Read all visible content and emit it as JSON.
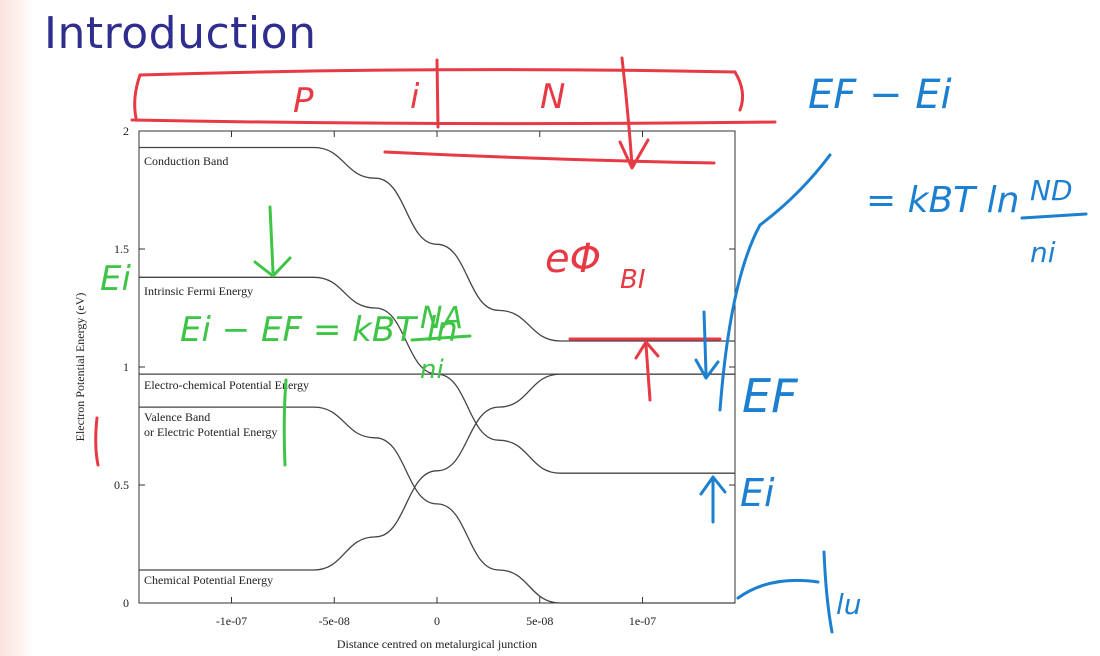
{
  "slide": {
    "title": "Introduction"
  },
  "chart_data": {
    "type": "line",
    "xlabel": "Distance centred on metalurgical junction",
    "ylabel": "Electron Potential Energy (eV)",
    "xlim": [
      -1.45e-07,
      1.45e-07
    ],
    "ylim": [
      0,
      2
    ],
    "x_ticks": [
      -1e-07,
      -5e-08,
      0,
      5e-08,
      1e-07
    ],
    "x_tick_labels": [
      "-1e-07",
      "-5e-08",
      "0",
      "5e-08",
      "1e-07"
    ],
    "y_ticks": [
      0,
      0.5,
      1,
      1.5,
      2
    ],
    "y_tick_labels": [
      "0",
      "0.5",
      "1",
      "1.5",
      "2"
    ],
    "grid": false,
    "legend": "none",
    "series": [
      {
        "name": "Conduction Band",
        "x": [
          -1.45e-07,
          -6e-08,
          -3e-08,
          0,
          3e-08,
          6e-08,
          1.45e-07
        ],
        "y": [
          1.93,
          1.93,
          1.8,
          1.52,
          1.24,
          1.11,
          1.11
        ]
      },
      {
        "name": "Intrinsic Fermi Energy",
        "x": [
          -1.45e-07,
          -6e-08,
          -3e-08,
          0,
          3e-08,
          6e-08,
          1.45e-07
        ],
        "y": [
          1.38,
          1.38,
          1.25,
          0.97,
          0.69,
          0.55,
          0.55
        ]
      },
      {
        "name": "Electro-chemical Potential Energy",
        "x": [
          -1.45e-07,
          1.45e-07
        ],
        "y": [
          0.97,
          0.97
        ]
      },
      {
        "name": "Valence Band or Electric Potential Energy",
        "x": [
          -1.45e-07,
          -6e-08,
          -3e-08,
          0,
          3e-08,
          6e-08,
          1.45e-07
        ],
        "y": [
          0.83,
          0.83,
          0.7,
          0.42,
          0.14,
          0.0,
          0.0
        ]
      },
      {
        "name": "Chemical Potential Energy",
        "x": [
          -1.45e-07,
          -6e-08,
          -3e-08,
          0,
          3e-08,
          6e-08,
          1.45e-07
        ],
        "y": [
          0.14,
          0.14,
          0.28,
          0.56,
          0.83,
          0.97,
          0.97
        ]
      }
    ],
    "curve_labels": {
      "conduction": "Conduction Band",
      "intrinsic": "Intrinsic Fermi Energy",
      "electrochemical": "Electro-chemical Potential Energy",
      "valence_line1": "Valence  Band",
      "valence_line2": "or Electric Potential Energy",
      "chemical": "Chemical Potential Energy"
    }
  },
  "annotations": {
    "region_p": "P",
    "region_i": "i",
    "region_n": "N",
    "phi_label": "eΦ",
    "phi_sub": "BI",
    "eq_green": "Ei − EF = kBT ln",
    "eq_green_num": "NA",
    "eq_green_den": "ni",
    "ei_left": "Ei",
    "ef_minus_ei": "EF − Ei",
    "eq_blue": "= kBT ln",
    "eq_blue_num": "ND",
    "eq_blue_den": "ni",
    "ef_right": "EF",
    "ei_right": "Ei",
    "u_mark": "lu"
  },
  "colors": {
    "title": "#2f2e8f",
    "ink_red": "#e63a44",
    "ink_blue": "#1d7fd0",
    "ink_green": "#3ec447",
    "curve": "#444444"
  }
}
